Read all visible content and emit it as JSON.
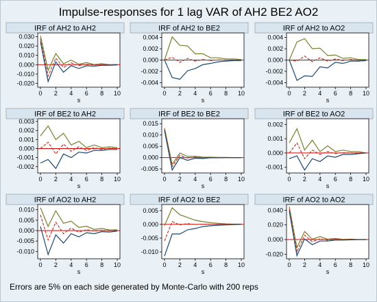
{
  "figure": {
    "title": "Impulse-responses for 1 lag VAR of AH2 BE2 AO2",
    "footnote": "Errors are 5% on each side generated by Monte-Carlo with 200 reps",
    "xlabel": "s"
  },
  "colors": {
    "lower": "#1a476f",
    "upper": "#7a7d2b",
    "irf": "#c0392b",
    "zero": "#d10000",
    "title_bar": "#d9e5ee",
    "plot_bg": "#ffffff",
    "frame_bg": "#e9f1f6"
  },
  "chart_data": [
    {
      "type": "line",
      "title": "IRF of AH2 to AH2",
      "xlabel": "s",
      "xlim": [
        0,
        10
      ],
      "xticks": [
        0,
        2,
        4,
        6,
        8,
        10
      ],
      "ylim": [
        -0.024,
        0.034
      ],
      "yticks": [
        -0.02,
        -0.01,
        0,
        0.01,
        0.02,
        0.03
      ],
      "ytick_labels": [
        "-0.020",
        "-0.010",
        "0.000",
        "0.010",
        "0.020",
        "0.030"
      ],
      "x": [
        0,
        1,
        2,
        3,
        4,
        5,
        6,
        7,
        8,
        9,
        10
      ],
      "series": [
        {
          "role": "upper",
          "values": [
            0.031,
            -0.006,
            0.012,
            0.001,
            0.005,
            0.0005,
            0.0022,
            0.0002,
            0.001,
            0.0001,
            0.0004
          ]
        },
        {
          "role": "irf",
          "values": [
            0.028,
            -0.012,
            0.007,
            -0.003,
            0.002,
            -0.001,
            0.0007,
            -0.0004,
            0.0002,
            -0.0001,
            0.0001
          ]
        },
        {
          "role": "lower",
          "values": [
            0.025,
            -0.018,
            0.003,
            -0.008,
            -0.001,
            -0.004,
            -0.0012,
            -0.0015,
            -0.0007,
            -0.0006,
            -0.0003
          ]
        }
      ]
    },
    {
      "type": "line",
      "title": "IRF of AH2 to BE2",
      "xlabel": "s",
      "xlim": [
        0,
        10
      ],
      "xticks": [
        0,
        2,
        4,
        6,
        8,
        10
      ],
      "ylim": [
        -0.0048,
        0.0048
      ],
      "yticks": [
        -0.004,
        -0.002,
        0,
        0.002,
        0.004
      ],
      "ytick_labels": [
        "-0.004",
        "-0.002",
        "0.000",
        "0.002",
        "0.004"
      ],
      "x": [
        0,
        1,
        2,
        3,
        4,
        5,
        6,
        7,
        8,
        9,
        10
      ],
      "series": [
        {
          "role": "upper",
          "values": [
            0,
            0.0041,
            0.0026,
            0.0025,
            0.0011,
            0.0011,
            0.0004,
            0.0004,
            0.0002,
            0.0002,
            0.0001
          ]
        },
        {
          "role": "irf",
          "values": [
            0,
            0.0005,
            -0.0004,
            0.0003,
            -0.0002,
            0.0001,
            -0.0001,
            5e-05,
            -3e-05,
            2e-05,
            0.0
          ]
        },
        {
          "role": "lower",
          "values": [
            0,
            -0.0031,
            -0.0034,
            -0.0019,
            -0.0015,
            -0.0008,
            -0.0006,
            -0.0003,
            -0.0002,
            -0.0001,
            -0.0001
          ]
        }
      ]
    },
    {
      "type": "line",
      "title": "IRF of AH2 to AO2",
      "xlabel": "s",
      "xlim": [
        0,
        10
      ],
      "xticks": [
        0,
        2,
        4,
        6,
        8,
        10
      ],
      "ylim": [
        -0.0048,
        0.0048
      ],
      "yticks": [
        -0.004,
        -0.002,
        0,
        0.002,
        0.004
      ],
      "ytick_labels": [
        "-0.004",
        "-0.002",
        "0.000",
        "0.002",
        "0.004"
      ],
      "x": [
        0,
        1,
        2,
        3,
        4,
        5,
        6,
        7,
        8,
        9,
        10
      ],
      "series": [
        {
          "role": "upper",
          "values": [
            0,
            0.0032,
            0.0038,
            0.002,
            0.0021,
            0.0008,
            0.0009,
            0.0003,
            0.0004,
            0.0001,
            0.0001
          ]
        },
        {
          "role": "irf",
          "values": [
            0,
            -0.0002,
            0.0007,
            -0.0003,
            0.0004,
            -0.0002,
            0.0002,
            -0.0001,
            0.0001,
            -4e-05,
            0.0
          ]
        },
        {
          "role": "lower",
          "values": [
            0,
            -0.0036,
            -0.0028,
            -0.0029,
            -0.0012,
            -0.0014,
            -0.0004,
            -0.0006,
            -0.0002,
            -0.0002,
            -0.0001
          ]
        }
      ]
    },
    {
      "type": "line",
      "title": "IRF of BE2 to AH2",
      "xlabel": "s",
      "xlim": [
        0,
        10
      ],
      "xticks": [
        0,
        2,
        4,
        6,
        8,
        10
      ],
      "ylim": [
        -0.0027,
        0.0033
      ],
      "yticks": [
        -0.002,
        -0.001,
        0,
        0.001,
        0.002,
        0.003
      ],
      "ytick_labels": [
        "-0.002",
        "-0.001",
        "0.000",
        "0.001",
        "0.002",
        "0.003"
      ],
      "x": [
        0,
        1,
        2,
        3,
        4,
        5,
        6,
        7,
        8,
        9,
        10
      ],
      "series": [
        {
          "role": "upper",
          "values": [
            0.0014,
            0.0025,
            0.001,
            0.0017,
            0.0004,
            0.0008,
            0.0001,
            0.0004,
            0.0001,
            0.0002,
            0.0001
          ]
        },
        {
          "role": "irf",
          "values": [
            0,
            0.0007,
            -0.0006,
            0.0005,
            -0.0003,
            0.0002,
            -0.0002,
            0.0001,
            -0.0001,
            5e-05,
            0.0
          ]
        },
        {
          "role": "lower",
          "values": [
            -0.0016,
            -0.0012,
            -0.0022,
            -0.0006,
            -0.001,
            -0.0004,
            -0.0005,
            -0.0002,
            -0.0002,
            -0.0001,
            -0.0001
          ]
        }
      ]
    },
    {
      "type": "line",
      "title": "IRF of BE2 to BE2",
      "xlabel": "s",
      "xlim": [
        0,
        10
      ],
      "xticks": [
        0,
        2,
        4,
        6,
        8,
        10
      ],
      "ylim": [
        -0.0068,
        0.0172
      ],
      "yticks": [
        -0.005,
        0,
        0.005,
        0.01,
        0.015
      ],
      "ytick_labels": [
        "-0.005",
        "0.000",
        "0.005",
        "0.010",
        "0.015"
      ],
      "x": [
        0,
        1,
        2,
        3,
        4,
        5,
        6,
        7,
        8,
        9,
        10
      ],
      "series": [
        {
          "role": "upper",
          "values": [
            0.013,
            -0.003,
            0.002,
            0.0005,
            0.0006,
            0.0002,
            0.0002,
            0.0001,
            0.0001,
            0.0,
            0.0
          ]
        },
        {
          "role": "irf",
          "values": [
            0.0125,
            -0.004,
            0.001,
            -0.0002,
            0.0002,
            -0.0001,
            0.0001,
            0.0,
            0.0,
            0.0,
            0.0
          ]
        },
        {
          "role": "lower",
          "values": [
            0.012,
            -0.0055,
            0.0,
            -0.0012,
            -0.0003,
            -0.0004,
            -0.0001,
            -0.0001,
            0.0,
            0.0,
            0.0
          ]
        }
      ]
    },
    {
      "type": "line",
      "title": "IRF of BE2 to AO2",
      "xlabel": "s",
      "xlim": [
        0,
        10
      ],
      "xticks": [
        0,
        2,
        4,
        6,
        8,
        10
      ],
      "ylim": [
        -0.0014,
        0.0024
      ],
      "yticks": [
        -0.001,
        0,
        0.001,
        0.002
      ],
      "ytick_labels": [
        "-0.001",
        "0.000",
        "0.001",
        "0.002"
      ],
      "x": [
        0,
        1,
        2,
        3,
        4,
        5,
        6,
        7,
        8,
        9,
        10
      ],
      "series": [
        {
          "role": "upper",
          "values": [
            0.0007,
            0.0017,
            0.0002,
            0.0009,
            0.0001,
            0.0005,
            0.0001,
            0.0002,
            0.0001,
            0.0001,
            0.0
          ]
        },
        {
          "role": "irf",
          "values": [
            0,
            0.0007,
            -0.0004,
            0.0002,
            -0.0001,
            0.0001,
            -5e-05,
            3e-05,
            0.0,
            0.0,
            0.0
          ]
        },
        {
          "role": "lower",
          "values": [
            -0.0004,
            -0.0002,
            -0.0012,
            -0.0004,
            -0.0006,
            -0.0002,
            -0.0003,
            -0.0001,
            -0.0001,
            -5e-05,
            0.0
          ]
        }
      ]
    },
    {
      "type": "line",
      "title": "IRF of AO2 to AH2",
      "xlabel": "s",
      "xlim": [
        0,
        10
      ],
      "xticks": [
        0,
        2,
        4,
        6,
        8,
        10
      ],
      "ylim": [
        -0.0135,
        0.0125
      ],
      "yticks": [
        -0.01,
        -0.005,
        0,
        0.005,
        0.01
      ],
      "ytick_labels": [
        "-0.010",
        "-0.005",
        "0.000",
        "0.005",
        "0.010"
      ],
      "x": [
        0,
        1,
        2,
        3,
        4,
        5,
        6,
        7,
        8,
        9,
        10
      ],
      "series": [
        {
          "role": "upper",
          "values": [
            0.011,
            0.002,
            0.0095,
            0.0035,
            0.0045,
            0.0015,
            0.0021,
            0.0006,
            0.001,
            0.0003,
            0.0004
          ]
        },
        {
          "role": "irf",
          "values": [
            0.0075,
            -0.0045,
            0.004,
            -0.0015,
            0.0012,
            -0.0008,
            0.0005,
            -0.0003,
            0.0002,
            -0.0001,
            0.0001
          ]
        },
        {
          "role": "lower",
          "values": [
            0.002,
            -0.0115,
            -0.002,
            -0.006,
            -0.0015,
            -0.003,
            -0.001,
            -0.0015,
            -0.0005,
            -0.0007,
            -0.0002
          ]
        }
      ]
    },
    {
      "type": "line",
      "title": "IRF of AO2 to BE2",
      "xlabel": "s",
      "xlim": [
        0,
        10
      ],
      "xticks": [
        0,
        2,
        4,
        6,
        8,
        10
      ],
      "ylim": [
        -0.0125,
        0.0072
      ],
      "yticks": [
        -0.01,
        -0.005,
        0,
        0.005
      ],
      "ytick_labels": [
        "-0.010",
        "-0.005",
        "0.000",
        "0.005"
      ],
      "x": [
        0,
        1,
        2,
        3,
        4,
        5,
        6,
        7,
        8,
        9,
        10
      ],
      "series": [
        {
          "role": "upper",
          "values": [
            -0.0005,
            0.006,
            0.0035,
            0.0025,
            0.0015,
            0.001,
            0.0006,
            0.0004,
            0.0002,
            0.0001,
            0.0001
          ]
        },
        {
          "role": "irf",
          "values": [
            -0.006,
            0.001,
            -0.0002,
            0.0003,
            -0.0001,
            0.0001,
            0.0,
            0.0,
            0.0,
            0.0,
            0.0
          ]
        },
        {
          "role": "lower",
          "values": [
            -0.0115,
            -0.0035,
            -0.0035,
            -0.002,
            -0.0015,
            -0.0008,
            -0.0005,
            -0.0003,
            -0.0002,
            -0.0001,
            0.0
          ]
        }
      ]
    },
    {
      "type": "line",
      "title": "IRF of AO2 to AO2",
      "xlabel": "s",
      "xlim": [
        0,
        10
      ],
      "xticks": [
        0,
        2,
        4,
        6,
        8,
        10
      ],
      "ylim": [
        -0.0262,
        0.0478
      ],
      "yticks": [
        -0.02,
        0,
        0.02,
        0.04
      ],
      "ytick_labels": [
        "-0.020",
        "0.000",
        "0.020",
        "0.040"
      ],
      "x": [
        0,
        1,
        2,
        3,
        4,
        5,
        6,
        7,
        8,
        9,
        10
      ],
      "series": [
        {
          "role": "upper",
          "values": [
            0.045,
            -0.011,
            0.011,
            0.0005,
            0.004,
            0.0005,
            0.0015,
            0.0003,
            0.0006,
            0.0001,
            0.0002
          ]
        },
        {
          "role": "irf",
          "values": [
            0.042,
            -0.017,
            0.006,
            -0.003,
            0.001,
            -0.0008,
            0.0004,
            -0.0002,
            0.0001,
            -0.0001,
            0.0
          ]
        },
        {
          "role": "lower",
          "values": [
            0.039,
            -0.022,
            0.001,
            -0.007,
            -0.002,
            -0.002,
            -0.0007,
            -0.0007,
            -0.0003,
            -0.0002,
            -0.0001
          ]
        }
      ]
    }
  ]
}
